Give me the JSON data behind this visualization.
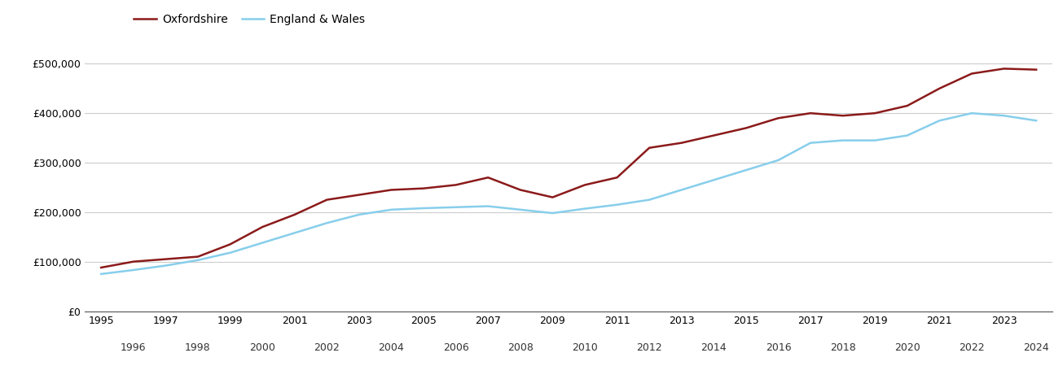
{
  "oxfordshire": {
    "years": [
      1995,
      1996,
      1997,
      1998,
      1999,
      2000,
      2001,
      2002,
      2003,
      2004,
      2005,
      2006,
      2007,
      2008,
      2009,
      2010,
      2011,
      2012,
      2013,
      2014,
      2015,
      2016,
      2017,
      2018,
      2019,
      2020,
      2021,
      2022,
      2023,
      2024
    ],
    "values": [
      88000,
      100000,
      105000,
      110000,
      135000,
      170000,
      195000,
      225000,
      235000,
      245000,
      248000,
      255000,
      270000,
      245000,
      230000,
      255000,
      270000,
      330000,
      340000,
      355000,
      370000,
      390000,
      400000,
      395000,
      400000,
      415000,
      450000,
      480000,
      490000,
      488000
    ]
  },
  "england_wales": {
    "years": [
      1995,
      1996,
      1997,
      1998,
      1999,
      2000,
      2001,
      2002,
      2003,
      2004,
      2005,
      2006,
      2007,
      2008,
      2009,
      2010,
      2011,
      2012,
      2013,
      2014,
      2015,
      2016,
      2017,
      2018,
      2019,
      2020,
      2021,
      2022,
      2023,
      2024
    ],
    "values": [
      75000,
      83000,
      92000,
      103000,
      118000,
      138000,
      158000,
      178000,
      195000,
      205000,
      208000,
      210000,
      212000,
      205000,
      198000,
      207000,
      215000,
      225000,
      245000,
      265000,
      285000,
      305000,
      340000,
      345000,
      345000,
      355000,
      385000,
      400000,
      395000,
      385000
    ]
  },
  "oxfordshire_color": "#8B1A1A",
  "england_wales_color": "#87CEEB",
  "legend_labels": [
    "Oxfordshire",
    "England & Wales"
  ],
  "yticks": [
    0,
    100000,
    200000,
    300000,
    400000,
    500000
  ],
  "ylim": [
    0,
    540000
  ],
  "xlim": [
    1994.5,
    2024.5
  ],
  "odd_years": [
    1995,
    1997,
    1999,
    2001,
    2003,
    2005,
    2007,
    2009,
    2011,
    2013,
    2015,
    2017,
    2019,
    2021,
    2023
  ],
  "even_years": [
    1996,
    1998,
    2000,
    2002,
    2004,
    2006,
    2008,
    2010,
    2012,
    2014,
    2016,
    2018,
    2020,
    2022,
    2024
  ],
  "background_color": "#ffffff",
  "grid_color": "#cccccc",
  "line_width": 1.8,
  "tick_fontsize": 9,
  "legend_fontsize": 10
}
